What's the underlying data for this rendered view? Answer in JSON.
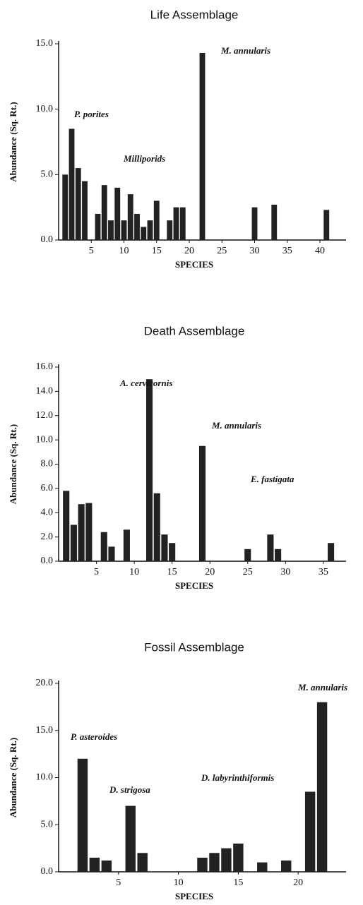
{
  "chart_data": [
    {
      "type": "bar",
      "title": "Life Assemblage",
      "x_label": "SPECIES",
      "y_label": "Abundance (Sq. Rt.)",
      "annotations": [
        "P. porites",
        "Milliporids",
        "M. annularis"
      ],
      "x": [
        1,
        2,
        3,
        4,
        6,
        7,
        8,
        9,
        10,
        11,
        12,
        13,
        14,
        15,
        17,
        18,
        19,
        22,
        30,
        33,
        41
      ],
      "values": [
        5.0,
        8.5,
        5.5,
        4.5,
        2.0,
        4.2,
        1.5,
        4.0,
        1.5,
        3.5,
        2.0,
        1.0,
        1.5,
        3.0,
        1.5,
        2.5,
        2.5,
        14.3,
        2.5,
        2.7,
        2.3
      ],
      "color": "#222222",
      "xlim": [
        0,
        44
      ],
      "xticks": [
        5,
        10,
        15,
        20,
        25,
        30,
        35,
        40
      ],
      "ylim": [
        0,
        15
      ],
      "yticks": [
        {
          "value": 0,
          "label": "0.0"
        },
        {
          "value": 5,
          "label": "5.0"
        },
        {
          "value": 10,
          "label": "10.0"
        },
        {
          "value": 15,
          "label": "15.0"
        }
      ]
    },
    {
      "type": "bar",
      "title": "Death Assemblage",
      "x_label": "SPECIES",
      "y_label": "Abundance (Sq. Rt.)",
      "annotations": [
        "A. cervicornis",
        "M. annularis",
        "E. fastigata"
      ],
      "x": [
        1,
        2,
        3,
        4,
        6,
        7,
        9,
        12,
        13,
        14,
        15,
        19,
        25,
        28,
        29,
        36
      ],
      "values": [
        5.8,
        3.0,
        4.7,
        4.8,
        2.4,
        1.2,
        2.6,
        15.0,
        5.6,
        2.2,
        1.5,
        9.5,
        1.0,
        2.2,
        1.0,
        1.5
      ],
      "color": "#222222",
      "xlim": [
        0,
        38
      ],
      "xticks": [
        5,
        10,
        15,
        20,
        25,
        30,
        35
      ],
      "ylim": [
        0,
        16
      ],
      "yticks": [
        {
          "value": 0,
          "label": "0.0"
        },
        {
          "value": 2,
          "label": "2.0"
        },
        {
          "value": 4,
          "label": "4.0"
        },
        {
          "value": 6,
          "label": "6.0"
        },
        {
          "value": 8,
          "label": "8.0"
        },
        {
          "value": 10,
          "label": "10.0"
        },
        {
          "value": 12,
          "label": "12.0"
        },
        {
          "value": 14,
          "label": "14.0"
        },
        {
          "value": 16,
          "label": "16.0"
        }
      ]
    },
    {
      "type": "bar",
      "title": "Fossil Assemblage",
      "x_label": "SPECIES",
      "y_label": "Abundance (Sq. Rt.)",
      "annotations": [
        "P. asteroides",
        "D. strigosa",
        "D. labyrinthiformis",
        "M. annularis"
      ],
      "x": [
        2,
        3,
        4,
        6,
        7,
        12,
        13,
        14,
        15,
        17,
        19,
        21,
        22
      ],
      "values": [
        12.0,
        1.5,
        1.2,
        7.0,
        2.0,
        1.5,
        2.0,
        2.5,
        3.0,
        1.0,
        1.2,
        8.5,
        18.0
      ],
      "color": "#222222",
      "xlim": [
        0,
        24
      ],
      "xticks": [
        5,
        10,
        15,
        20
      ],
      "ylim": [
        0,
        20
      ],
      "yticks": [
        {
          "value": 0,
          "label": "0.0"
        },
        {
          "value": 5,
          "label": "5.0"
        },
        {
          "value": 10,
          "label": "10.0"
        },
        {
          "value": 15,
          "label": "15.0"
        },
        {
          "value": 20,
          "label": "20.0"
        }
      ]
    }
  ]
}
